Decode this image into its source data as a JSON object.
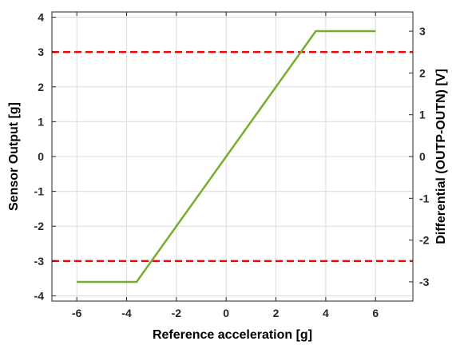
{
  "chart_data": {
    "type": "line",
    "title": "",
    "xlabel": "Reference acceleration [g]",
    "ylabel": "Sensor Output [g]",
    "ylabel_right": "Differential (OUTP-OUTN) [V]",
    "xlim": [
      -7,
      7.5
    ],
    "ylim": [
      -4.15,
      4.15
    ],
    "ylim_right": [
      -3.46,
      3.46
    ],
    "grid": true,
    "x_ticks": [
      -6,
      -4,
      -2,
      0,
      2,
      4,
      6
    ],
    "x_tick_labels": [
      "-6",
      "-4",
      "-2",
      "0",
      "2",
      "4",
      "6"
    ],
    "y_ticks": [
      -4,
      -3,
      -2,
      -1,
      0,
      1,
      2,
      3,
      4
    ],
    "y_tick_labels": [
      "-4",
      "-3",
      "-2",
      "-1",
      "0",
      "1",
      "2",
      "3",
      "4"
    ],
    "y_right_ticks": [
      -3,
      -2,
      -1,
      0,
      1,
      2,
      3
    ],
    "y_right_tick_labels": [
      "-3",
      "-2",
      "-1",
      "0",
      "1",
      "2",
      "3"
    ],
    "series": [
      {
        "x": [
          -6,
          -3.6,
          3.6,
          6
        ],
        "y": [
          -3.6,
          -3.6,
          3.6,
          3.6
        ],
        "color": "#77ac30",
        "style": "solid"
      }
    ],
    "reference_lines": [
      {
        "y": 3,
        "color": "#ff0000",
        "style": "dashed"
      },
      {
        "y": -3,
        "color": "#ff0000",
        "style": "dashed"
      }
    ]
  }
}
